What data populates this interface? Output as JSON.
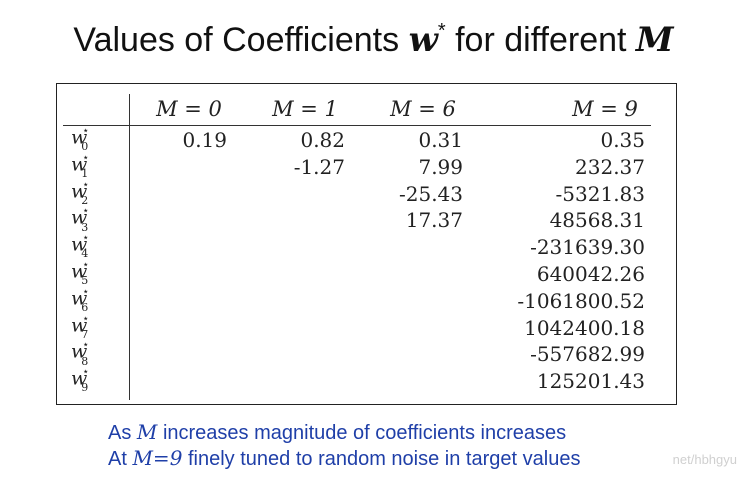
{
  "title": {
    "prefix": "Values of Coefficients ",
    "symbol": "w",
    "superscript": "*",
    "middle": " for different ",
    "variable": "M"
  },
  "table": {
    "columns": [
      "M = 0",
      "M = 1",
      "M = 6",
      "M = 9"
    ],
    "rows": [
      {
        "label": "w",
        "index": "0",
        "star": "⋆",
        "values": [
          "0.19",
          "0.82",
          "0.31",
          "0.35"
        ]
      },
      {
        "label": "w",
        "index": "1",
        "star": "⋆",
        "values": [
          "",
          "-1.27",
          "7.99",
          "232.37"
        ]
      },
      {
        "label": "w",
        "index": "2",
        "star": "⋆",
        "values": [
          "",
          "",
          "-25.43",
          "-5321.83"
        ]
      },
      {
        "label": "w",
        "index": "3",
        "star": "⋆",
        "values": [
          "",
          "",
          "17.37",
          "48568.31"
        ]
      },
      {
        "label": "w",
        "index": "4",
        "star": "⋆",
        "values": [
          "",
          "",
          "",
          "-231639.30"
        ]
      },
      {
        "label": "w",
        "index": "5",
        "star": "⋆",
        "values": [
          "",
          "",
          "",
          "640042.26"
        ]
      },
      {
        "label": "w",
        "index": "6",
        "star": "⋆",
        "values": [
          "",
          "",
          "",
          "-1061800.52"
        ]
      },
      {
        "label": "w",
        "index": "7",
        "star": "⋆",
        "values": [
          "",
          "",
          "",
          "1042400.18"
        ]
      },
      {
        "label": "w",
        "index": "8",
        "star": "⋆",
        "values": [
          "",
          "",
          "",
          "-557682.99"
        ]
      },
      {
        "label": "w",
        "index": "9",
        "star": "⋆",
        "values": [
          "",
          "",
          "",
          "125201.43"
        ]
      }
    ]
  },
  "caption": {
    "line1": {
      "before": "As ",
      "var": "M",
      "after": " increases magnitude of coefficients increases"
    },
    "line2": {
      "before": "At ",
      "var": "M=9",
      "after": " finely tuned to random noise in target values"
    }
  },
  "watermark": "net/hbhgyu",
  "colors": {
    "caption": "#1f3fa8",
    "text": "#222222"
  }
}
